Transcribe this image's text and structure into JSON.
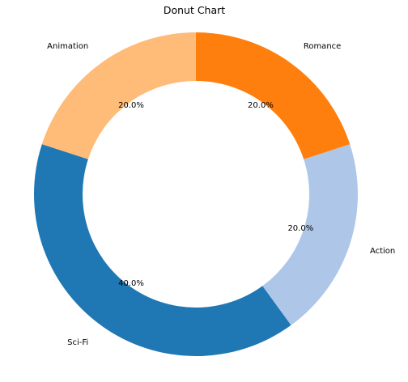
{
  "chart_data": {
    "type": "pie",
    "variant": "donut",
    "title": "Donut Chart",
    "categories": [
      "Animation",
      "Sci-Fi",
      "Action",
      "Romance"
    ],
    "values": [
      20.0,
      40.0,
      20.0,
      20.0
    ],
    "percent_labels": [
      "20.0%",
      "40.0%",
      "20.0%",
      "20.0%"
    ],
    "colors": [
      "#ffbb78",
      "#1f77b4",
      "#aec7e8",
      "#ff7f0e"
    ],
    "start_angle_deg": 90,
    "direction": "counterclockwise"
  }
}
